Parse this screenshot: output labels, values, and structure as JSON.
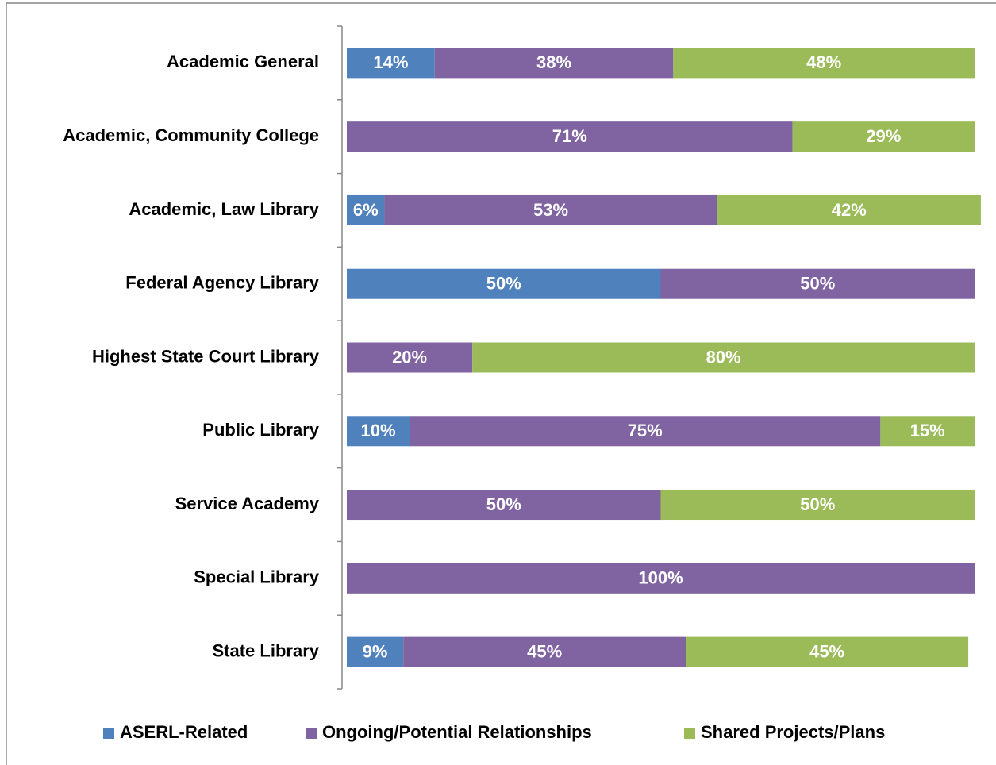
{
  "chart_data": {
    "type": "stacked_barh",
    "categories": [
      "Academic General",
      "Academic, Community College",
      "Academic, Law Library",
      "Federal Agency Library",
      "Highest State Court Library",
      "Public Library",
      "Service Academy",
      "Special Library",
      "State Library"
    ],
    "series": [
      {
        "name": "ASERL-Related",
        "color": "#4f81bd",
        "values": [
          14,
          null,
          6,
          50,
          null,
          10,
          null,
          null,
          9
        ]
      },
      {
        "name": "Ongoing/Potential Relationships",
        "color": "#8064a2",
        "values": [
          38,
          71,
          53,
          50,
          20,
          75,
          50,
          100,
          45
        ]
      },
      {
        "name": "Shared Projects/Plans",
        "color": "#9bbb59",
        "values": [
          48,
          29,
          42,
          null,
          80,
          15,
          50,
          null,
          45
        ]
      }
    ],
    "value_labels": [
      [
        "14%",
        null,
        "6%",
        "50%",
        null,
        "10%",
        null,
        null,
        "9%"
      ],
      [
        "38%",
        "71%",
        "53%",
        "50%",
        "20%",
        "75%",
        "50%",
        "100%",
        "45%"
      ],
      [
        "48%",
        "29%",
        "42%",
        null,
        "80%",
        "15%",
        "50%",
        null,
        "45%"
      ]
    ],
    "xlim": [
      0,
      100
    ],
    "legend": "bottom"
  }
}
